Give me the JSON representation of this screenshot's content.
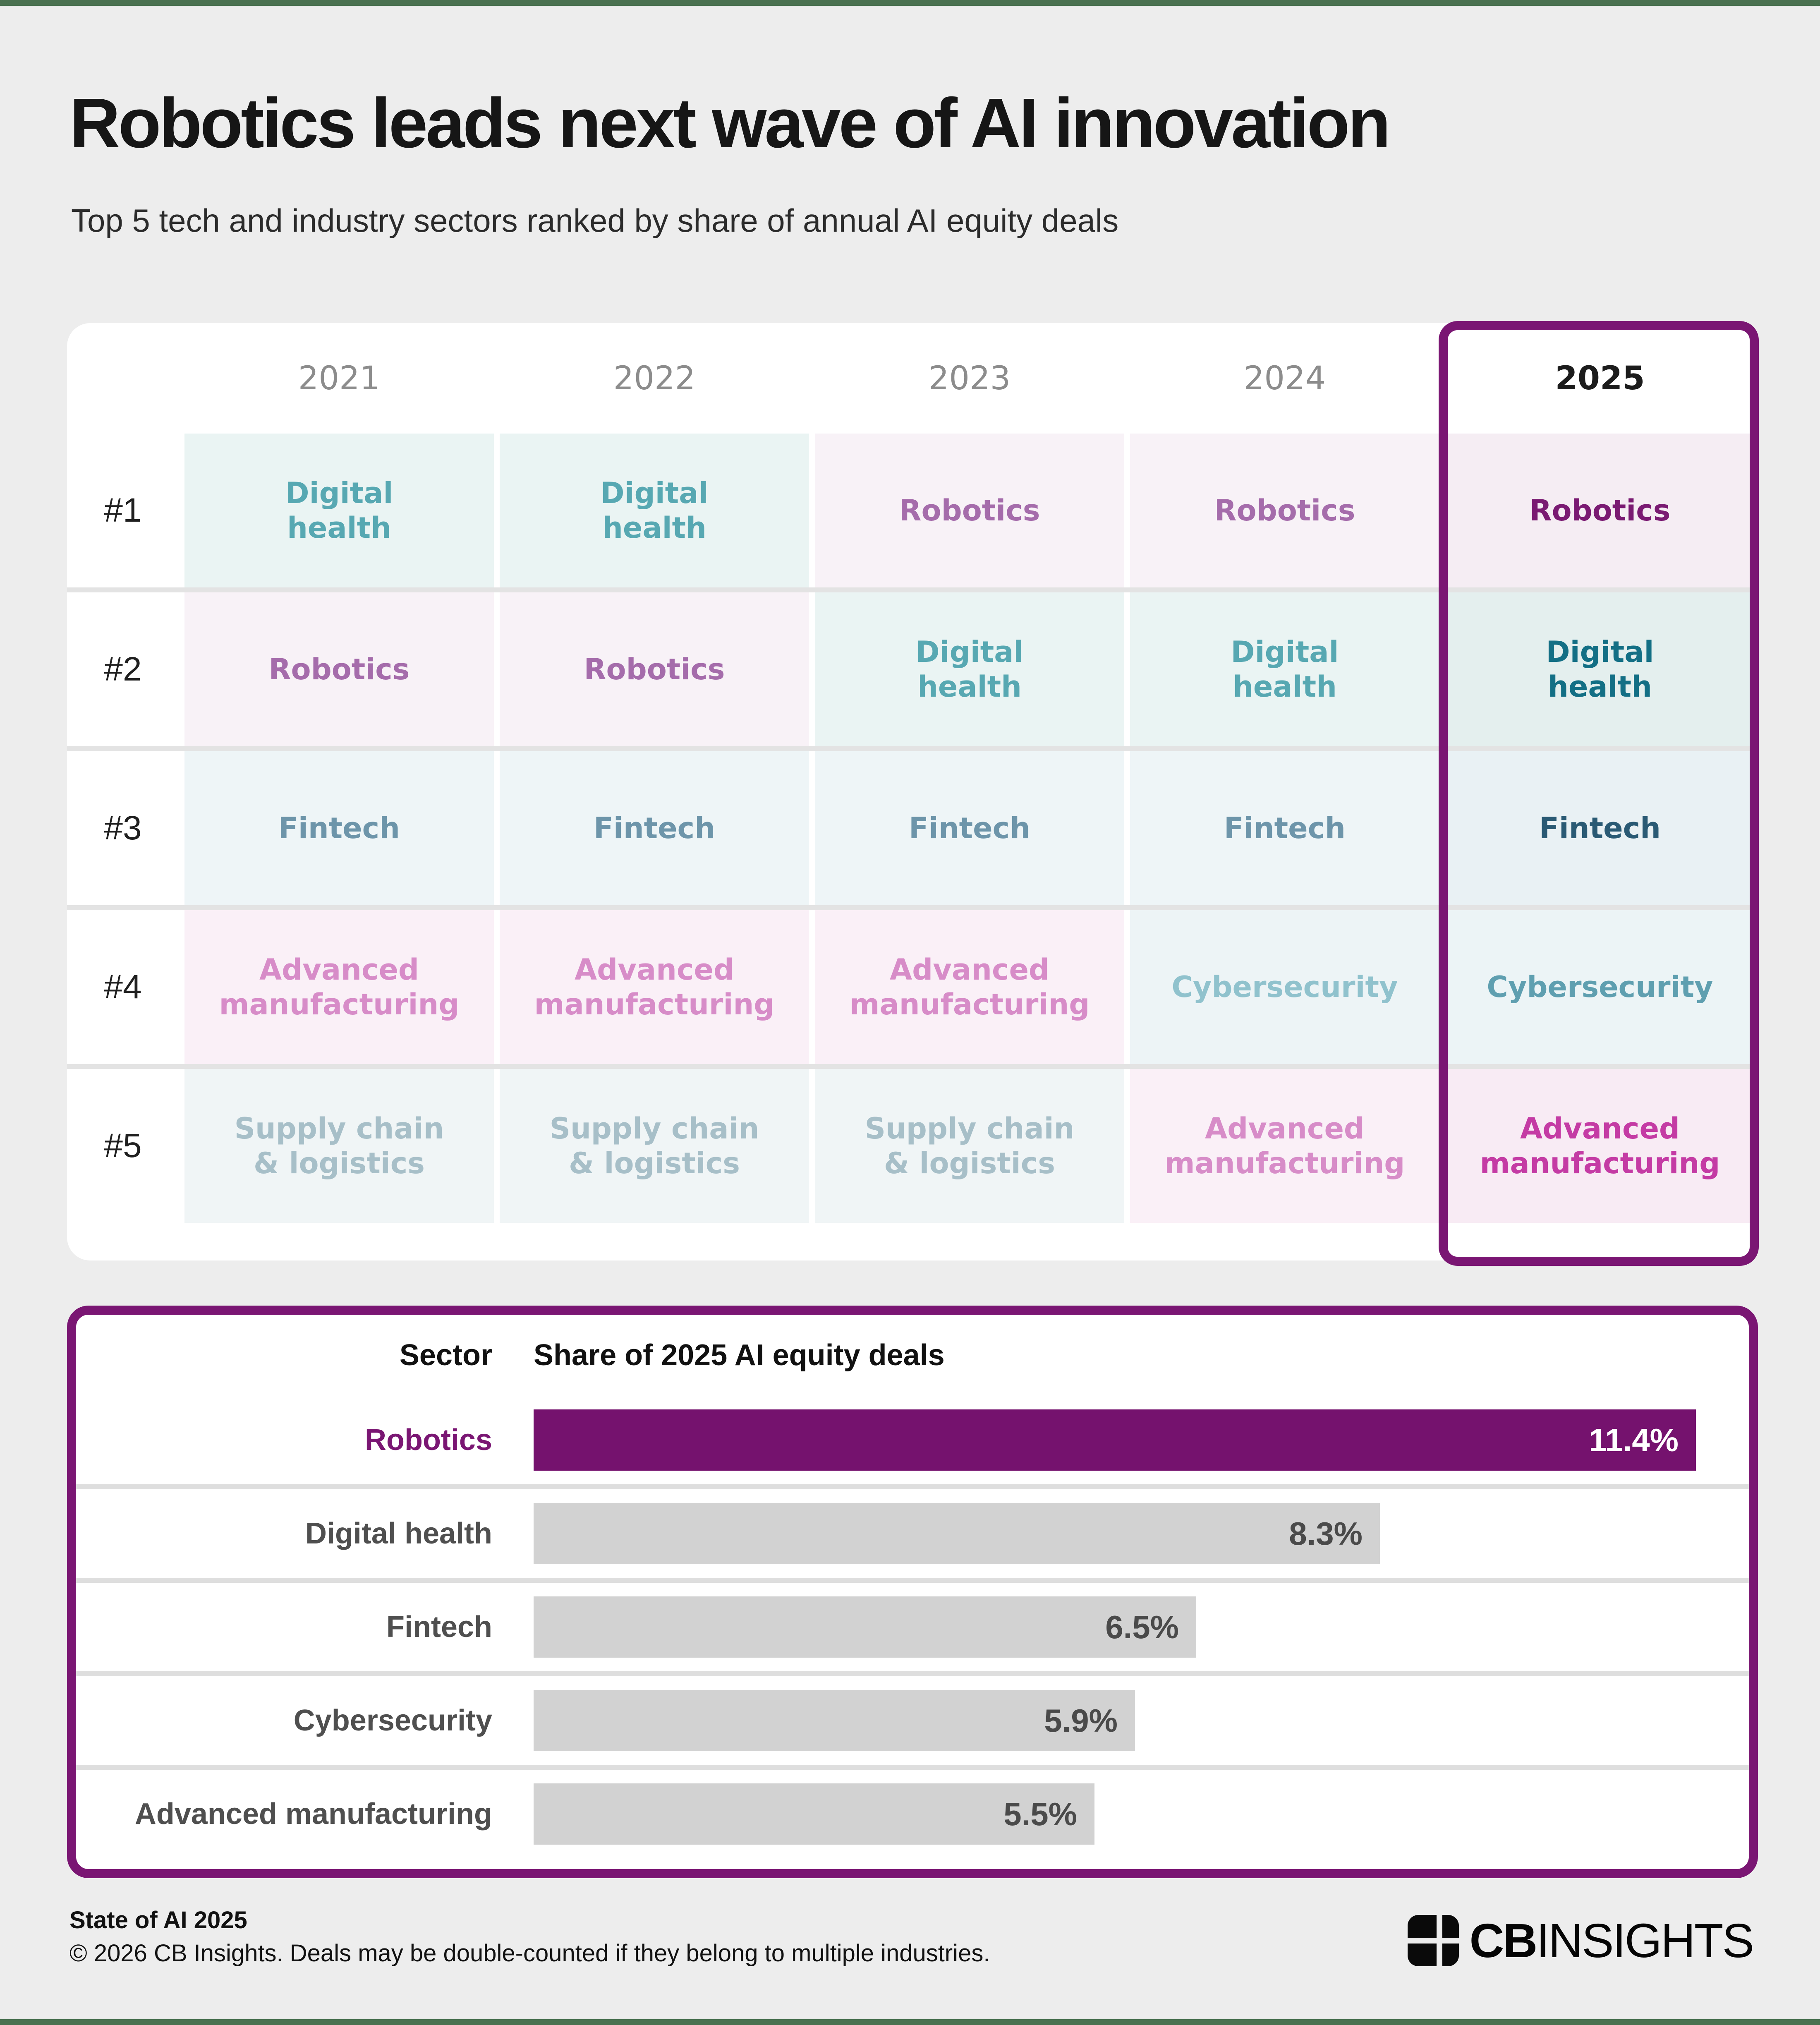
{
  "page": {
    "title": "Robotics leads next wave of AI innovation",
    "subtitle": "Top 5 tech and industry sectors ranked by share of annual AI equity deals",
    "accent_color": "#7a1673",
    "edge_bar_color": "#4a7150",
    "background_color": "#ededed"
  },
  "ranking_table": {
    "years": [
      "2021",
      "2022",
      "2023",
      "2024",
      "2025"
    ],
    "highlighted_year": "2025",
    "sector_styles": {
      "Robotics": {
        "text": "#a56cab",
        "bg": "#f8f2f7",
        "text_hi": "#7a1a72",
        "bg_hi": "#f5edf3"
      },
      "Digital health": {
        "text": "#57a8b2",
        "bg": "#eaf4f3",
        "text_hi": "#136f85",
        "bg_hi": "#e4efee"
      },
      "Fintech": {
        "text": "#6d95aa",
        "bg": "#eef5f7",
        "text_hi": "#2a5a74",
        "bg_hi": "#e9f1f4"
      },
      "Cybersecurity": {
        "text": "#90c2cd",
        "bg": "#edf4f6",
        "text_hi": "#5f9fb0",
        "bg_hi": "#ecf4f6"
      },
      "Advanced manufacturing": {
        "text": "#d78cc8",
        "bg": "#faf0f7",
        "text_hi": "#c43ba4",
        "bg_hi": "#f8ebf4"
      },
      "Supply chain & logistics": {
        "text": "#a7bfc8",
        "bg": "#f0f5f6",
        "text_hi": "#a7bfc8",
        "bg_hi": "#f0f5f6"
      }
    },
    "rows": [
      {
        "rank": "#1",
        "cells": [
          {
            "sector": "Digital health",
            "label": "Digital\nhealth"
          },
          {
            "sector": "Digital health",
            "label": "Digital\nhealth"
          },
          {
            "sector": "Robotics",
            "label": "Robotics"
          },
          {
            "sector": "Robotics",
            "label": "Robotics"
          },
          {
            "sector": "Robotics",
            "label": "Robotics"
          }
        ]
      },
      {
        "rank": "#2",
        "cells": [
          {
            "sector": "Robotics",
            "label": "Robotics"
          },
          {
            "sector": "Robotics",
            "label": "Robotics"
          },
          {
            "sector": "Digital health",
            "label": "Digital\nhealth"
          },
          {
            "sector": "Digital health",
            "label": "Digital\nhealth"
          },
          {
            "sector": "Digital health",
            "label": "Digital\nhealth"
          }
        ]
      },
      {
        "rank": "#3",
        "cells": [
          {
            "sector": "Fintech",
            "label": "Fintech"
          },
          {
            "sector": "Fintech",
            "label": "Fintech"
          },
          {
            "sector": "Fintech",
            "label": "Fintech"
          },
          {
            "sector": "Fintech",
            "label": "Fintech"
          },
          {
            "sector": "Fintech",
            "label": "Fintech"
          }
        ]
      },
      {
        "rank": "#4",
        "cells": [
          {
            "sector": "Advanced manufacturing",
            "label": "Advanced\nmanufacturing"
          },
          {
            "sector": "Advanced manufacturing",
            "label": "Advanced\nmanufacturing"
          },
          {
            "sector": "Advanced manufacturing",
            "label": "Advanced\nmanufacturing"
          },
          {
            "sector": "Cybersecurity",
            "label": "Cybersecurity"
          },
          {
            "sector": "Cybersecurity",
            "label": "Cybersecurity"
          }
        ]
      },
      {
        "rank": "#5",
        "cells": [
          {
            "sector": "Supply chain & logistics",
            "label": "Supply chain\n& logistics"
          },
          {
            "sector": "Supply chain & logistics",
            "label": "Supply chain\n& logistics"
          },
          {
            "sector": "Supply chain & logistics",
            "label": "Supply chain\n& logistics"
          },
          {
            "sector": "Advanced manufacturing",
            "label": "Advanced\nmanufacturing"
          },
          {
            "sector": "Advanced manufacturing",
            "label": "Advanced\nmanufacturing"
          }
        ]
      }
    ]
  },
  "chart_data": {
    "type": "bar",
    "sector_header": "Sector",
    "title": "Share of 2025 AI equity deals",
    "categories": [
      "Robotics",
      "Digital health",
      "Fintech",
      "Cybersecurity",
      "Advanced manufacturing"
    ],
    "values": [
      11.4,
      8.3,
      6.5,
      5.9,
      5.5
    ],
    "unit": "%",
    "xlim": [
      0,
      11.4
    ],
    "grid": "off",
    "legend": "none",
    "value_label_position": "inside-end",
    "highlight_category": "Robotics",
    "highlight_color": "#75126e",
    "bar_color": "#d2d2d2"
  },
  "footer": {
    "source_line": "State of AI 2025",
    "copyright_line": "© 2026 CB Insights. Deals may be double-counted if they belong to multiple industries.",
    "logo": {
      "bold": "CB",
      "regular": "INSIGHTS"
    }
  }
}
